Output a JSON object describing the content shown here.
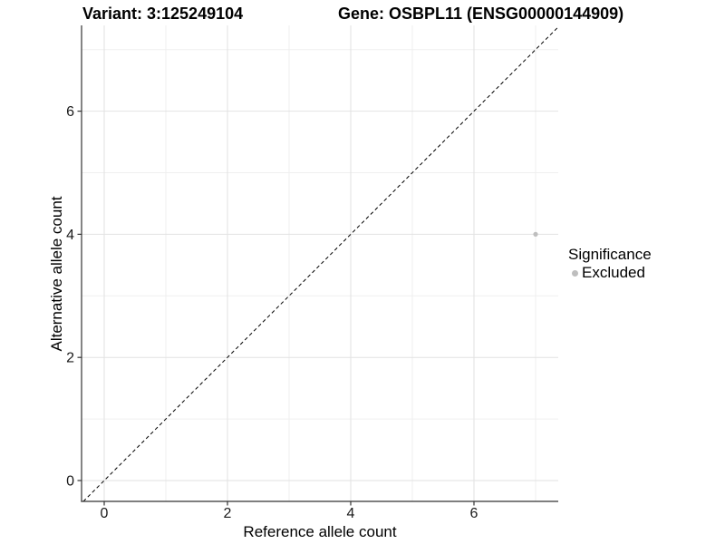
{
  "header": {
    "variant_title": "Variant: 3:125249104",
    "gene_title": "Gene: OSBPL11 (ENSG00000144909)"
  },
  "chart_data": {
    "type": "scatter",
    "title_left": "Variant: 3:125249104",
    "title_right": "Gene: OSBPL11 (ENSG00000144909)",
    "xlabel": "Reference allele count",
    "ylabel": "Alternative allele count",
    "xlim": [
      -0.37,
      7.37
    ],
    "ylim": [
      -0.34,
      7.39
    ],
    "x_ticks": [
      0,
      2,
      4,
      6
    ],
    "y_ticks": [
      0,
      2,
      4,
      6
    ],
    "x_minor_ticks": [
      1,
      3,
      5,
      7
    ],
    "y_minor_ticks": [
      1,
      3,
      5,
      7
    ],
    "grid": "major and minor, light grey on white",
    "reference_line": {
      "equation": "y = x",
      "style": "dashed",
      "color": "#000000"
    },
    "series": [
      {
        "name": "Excluded",
        "color": "#bebebe",
        "points": [
          {
            "x": 7,
            "y": 4
          }
        ]
      }
    ],
    "legend": {
      "title": "Significance",
      "position": "right",
      "entries": [
        {
          "label": "Excluded",
          "color": "#bebebe"
        }
      ]
    }
  },
  "colors": {
    "background": "#ffffff",
    "grid_major": "#e2e2e2",
    "grid_minor": "#efefef",
    "axis_line": "#333333",
    "tick_label": "#1a1a1a",
    "point": "#bebebe"
  }
}
